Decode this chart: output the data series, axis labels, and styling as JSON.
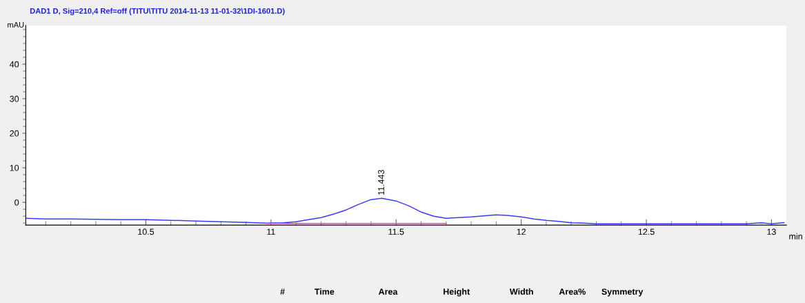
{
  "chart_data": {
    "type": "line",
    "title": "DAD1 D, Sig=210,4 Ref=off (TITU\\TITU 2014-11-13 11-01-32\\1DI-1601.D)",
    "xlabel": "min",
    "ylabel": "mAU",
    "series": [
      {
        "color": "#3a3aff",
        "x": [
          10.02,
          10.1,
          10.2,
          10.3,
          10.4,
          10.5,
          10.6,
          10.7,
          10.8,
          10.9,
          10.98,
          11.05,
          11.1,
          11.15,
          11.2,
          11.25,
          11.3,
          11.35,
          11.4,
          11.443,
          11.5,
          11.55,
          11.6,
          11.65,
          11.7,
          11.75,
          11.8,
          11.85,
          11.9,
          11.95,
          12.0,
          12.05,
          12.1,
          12.15,
          12.2,
          12.25,
          12.3,
          12.9,
          12.96,
          13.0,
          13.05
        ],
        "values": [
          -4.6,
          -4.8,
          -4.8,
          -4.9,
          -5.0,
          -5.0,
          -5.2,
          -5.4,
          -5.6,
          -5.8,
          -6.0,
          -5.9,
          -5.6,
          -5.0,
          -4.4,
          -3.4,
          -2.2,
          -0.6,
          0.8,
          1.2,
          0.4,
          -1.0,
          -2.8,
          -4.0,
          -4.6,
          -4.4,
          -4.2,
          -3.9,
          -3.6,
          -3.8,
          -4.2,
          -4.8,
          -5.2,
          -5.5,
          -5.9,
          -6.0,
          -6.2,
          -6.2,
          -5.9,
          -6.2,
          -5.9
        ]
      },
      {
        "color": "#ff33cc",
        "x": [
          10.98,
          11.7
        ],
        "values": [
          -6.1,
          -6.1
        ]
      }
    ],
    "annotations": [
      {
        "text": "11.443",
        "x": 11.443,
        "y": 1.2
      },
      "#",
      "Time",
      "Area",
      "Height",
      "Width",
      "Area%",
      "Symmetry"
    ],
    "xlim": [
      10.02,
      13.06
    ],
    "ylim": [
      -6.6,
      51.2
    ],
    "xticks": [
      10.5,
      11,
      11.5,
      12,
      12.5,
      13
    ],
    "yticks": [
      0,
      10,
      20,
      30,
      40
    ],
    "grid": false,
    "marker": "none",
    "line_style": "solid"
  }
}
